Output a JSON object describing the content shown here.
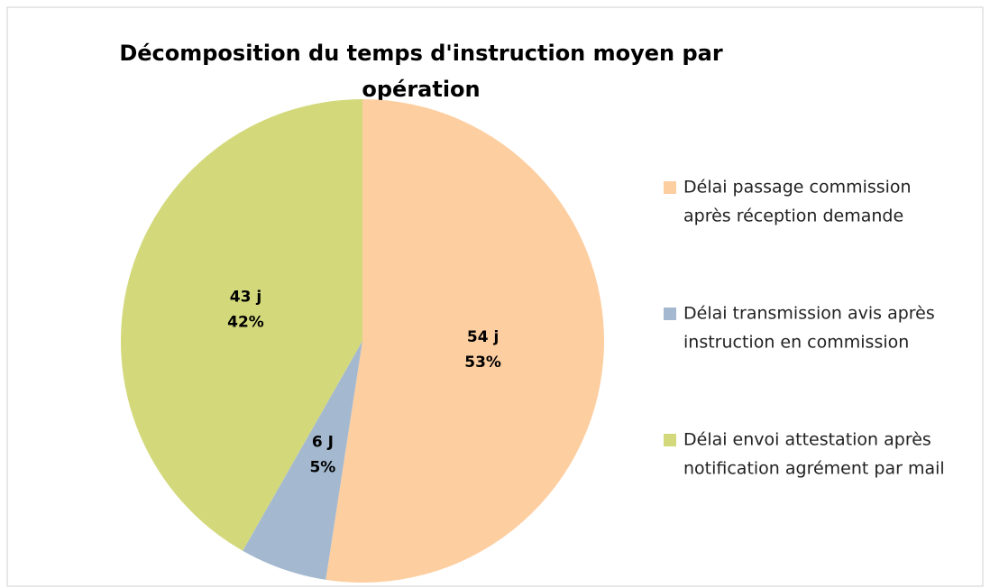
{
  "chart_data": {
    "type": "pie",
    "title": [
      "Décomposition du temps d'instruction moyen par",
      "opération"
    ],
    "categories": [
      [
        "Délai passage commission",
        "après réception demande"
      ],
      [
        "Délai transmission avis après",
        "instruction en commission"
      ],
      [
        "Délai envoi attestation après",
        "notification agrément par mail"
      ]
    ],
    "values": [
      54,
      6,
      43
    ],
    "value_labels": [
      "54 j",
      "6 J",
      "43 j"
    ],
    "percent_labels": [
      "53%",
      "5%",
      "42%"
    ],
    "colors": [
      "#fdcea0",
      "#a4b9d0",
      "#d3d97b"
    ],
    "legend": "right"
  }
}
